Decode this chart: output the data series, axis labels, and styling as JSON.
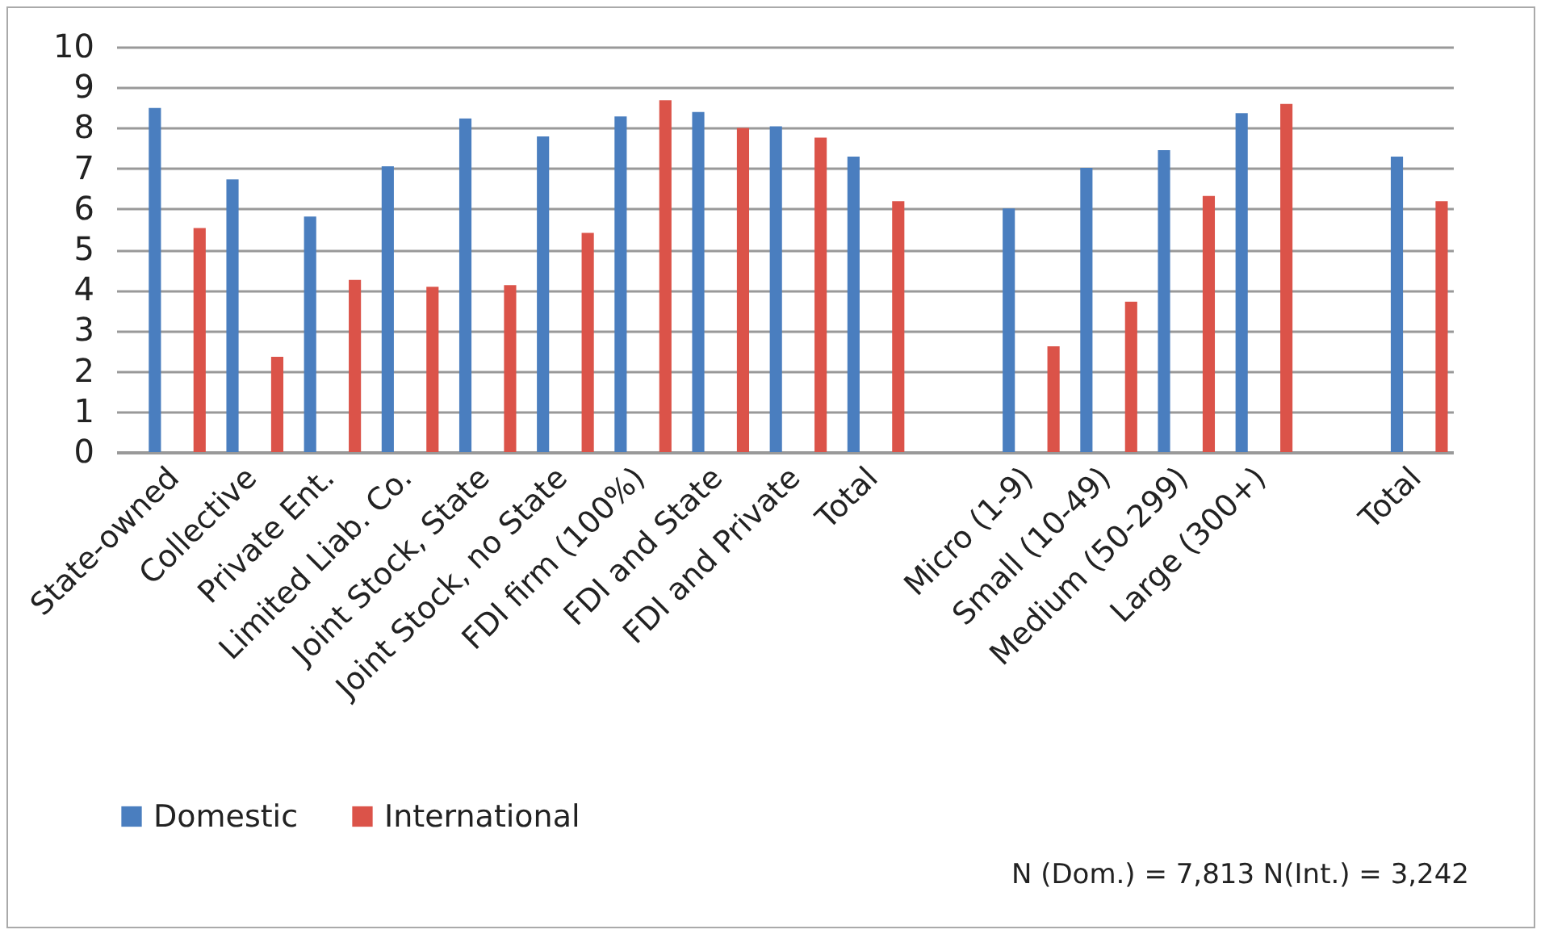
{
  "chart_data": {
    "type": "bar",
    "categories": [
      "State-owned",
      "Collective",
      "Private Ent.",
      "Limited Liab. Co.",
      "Joint Stock, State",
      "Joint Stock, no State",
      "FDI firm (100%)",
      "FDI and State",
      "FDI and Private",
      "Total",
      null,
      "Micro (1-9)",
      "Small (10-49)",
      "Medium (50-299)",
      "Large (300+)",
      null,
      "Total"
    ],
    "series": [
      {
        "name": "Domestic",
        "color": "#4a7ebf",
        "values": [
          8.49,
          6.73,
          5.81,
          7.05,
          8.23,
          7.79,
          8.28,
          8.39,
          8.04,
          7.29,
          null,
          6.01,
          7.01,
          7.45,
          8.36,
          null,
          7.29
        ]
      },
      {
        "name": "International",
        "color": "#db5349",
        "values": [
          5.53,
          2.35,
          4.25,
          4.08,
          4.12,
          5.41,
          8.68,
          8.0,
          7.76,
          6.19,
          null,
          2.61,
          3.71,
          6.32,
          8.59,
          null,
          6.19
        ]
      }
    ],
    "ylim": [
      0,
      10
    ],
    "yticks": [
      0,
      1,
      2,
      3,
      4,
      5,
      6,
      7,
      8,
      9,
      10
    ],
    "grid": "y",
    "legend": "bottom left",
    "annotations": [
      "N (Dom.) = 7,813 N(Int.) = 3,242"
    ]
  }
}
